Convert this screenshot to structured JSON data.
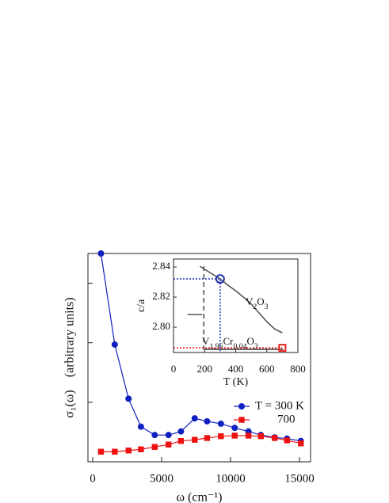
{
  "chart_data": [
    {
      "type": "line",
      "x_label": "ω (cm⁻¹)",
      "y_label": "σ₁(ω)    (arbitrary units)",
      "x": [
        600,
        1600,
        2600,
        3500,
        4500,
        5500,
        6400,
        7400,
        8300,
        9300,
        10300,
        11300,
        12200,
        13200,
        14100,
        15100
      ],
      "series": [
        {
          "name": "T =  300 K",
          "color": "#1020c0",
          "marker": "circle",
          "values": [
            3.5,
            1.97,
            1.06,
            0.59,
            0.45,
            0.45,
            0.51,
            0.73,
            0.68,
            0.64,
            0.57,
            0.51,
            0.45,
            0.41,
            0.39,
            0.35
          ]
        },
        {
          "name": "700",
          "color": "#ee1111",
          "marker": "square",
          "values": [
            0.17,
            0.17,
            0.19,
            0.21,
            0.25,
            0.29,
            0.35,
            0.37,
            0.4,
            0.43,
            0.44,
            0.44,
            0.43,
            0.4,
            0.36,
            0.31
          ]
        }
      ],
      "xlim": [
        -345,
        15805
      ],
      "xticks": [
        0,
        5000,
        10000,
        15000
      ],
      "ylim": [
        0,
        3.5
      ],
      "yticks": [
        1,
        2,
        3
      ]
    },
    {
      "type": "line",
      "x_label": "T (K)",
      "y_label": "c/a",
      "series": [
        {
          "name": "V2O3",
          "color": "#555555",
          "x": [
            170,
            250,
            300,
            350,
            400,
            450,
            500,
            550,
            600,
            650,
            700
          ],
          "values": [
            2.8405,
            2.8353,
            2.8321,
            2.8279,
            2.8242,
            2.82,
            2.8153,
            2.8095,
            2.8037,
            2.7989,
            2.7963
          ]
        },
        {
          "color": "#555555",
          "x": [
            90,
            185
          ],
          "values": [
            2.8084,
            2.8084
          ]
        },
        {
          "color": "#555555",
          "dash": "6,4",
          "x": [
            195,
            195
          ],
          "values": [
            2.8405,
            2.7853
          ]
        },
        {
          "name": "V1.96Cr0.04O3",
          "color": "#333333",
          "x": [
            195,
            705
          ],
          "values": [
            2.7853,
            2.7853
          ]
        },
        {
          "color": "#ee2222",
          "dash": "2,2",
          "x": [
            0,
            700
          ],
          "values": [
            2.7863,
            2.7863
          ]
        },
        {
          "color": "#2233bb",
          "dash": "2,2",
          "x": [
            0,
            300,
            300
          ],
          "values": [
            2.8321,
            2.8321,
            2.7832
          ]
        }
      ],
      "markers": [
        {
          "x": 300,
          "y": 2.8321,
          "shape": "circle",
          "color": "#2233aa"
        },
        {
          "x": 700,
          "y": 2.7863,
          "shape": "square",
          "color": "#ee2222"
        }
      ],
      "xlim": [
        0,
        800
      ],
      "xticks": [
        0,
        200,
        400,
        600,
        800
      ],
      "ylim": [
        2.7832,
        2.8453
      ],
      "yticks": [
        {
          "value": 2.8,
          "label": "2.80"
        },
        2.82,
        2.84
      ]
    }
  ]
}
